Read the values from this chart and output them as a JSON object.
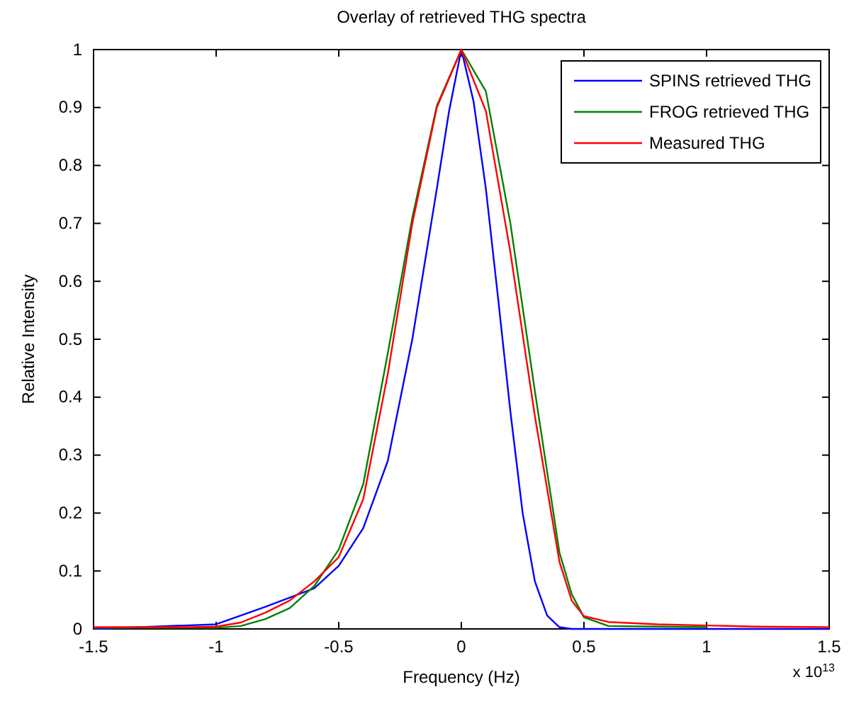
{
  "chart_data": {
    "type": "line",
    "title": "Overlay of retrieved THG spectra",
    "xlabel": "Frequency (Hz)",
    "ylabel": "Relative Intensity",
    "annotations": [
      "x 10$^{13}$"
    ],
    "xlim": [
      -1.5,
      1.5
    ],
    "xticks": [
      -1.5,
      -1,
      -0.5,
      0,
      0.5,
      1,
      1.5
    ],
    "ylim": [
      0,
      1
    ],
    "yticks": [
      0,
      0.1,
      0.2,
      0.3,
      0.4,
      0.5,
      0.6,
      0.7,
      0.8,
      0.9,
      1
    ],
    "grid": false,
    "legend": "top right",
    "line_style": "solid",
    "marker": "none",
    "series": [
      {
        "name": "SPINS retrieved THG",
        "color": "#0000ff",
        "x": [
          -1.5,
          -1,
          -0.8,
          -0.6,
          -0.5,
          -0.4,
          -0.3,
          -0.2,
          -0.1,
          -0.05,
          0,
          0.05,
          0.1,
          0.15,
          0.2,
          0.25,
          0.3,
          0.35,
          0.4,
          0.45,
          1.5
        ],
        "values": [
          0,
          0.008,
          0.038,
          0.07,
          0.109,
          0.174,
          0.29,
          0.5,
          0.76,
          0.894,
          1,
          0.91,
          0.76,
          0.57,
          0.375,
          0.2,
          0.082,
          0.023,
          0.003,
          0,
          0
        ]
      },
      {
        "name": "FROG retrieved THG",
        "color": "#008000",
        "x": [
          -1.5,
          -1,
          -0.9,
          -0.8,
          -0.7,
          -0.6,
          -0.5,
          -0.4,
          -0.3,
          -0.2,
          -0.1,
          0,
          0.1,
          0.2,
          0.3,
          0.4,
          0.45,
          0.5,
          0.6,
          0.8,
          1
        ],
        "values": [
          0.002,
          0.002,
          0.005,
          0.017,
          0.036,
          0.074,
          0.137,
          0.25,
          0.476,
          0.71,
          0.903,
          1,
          0.928,
          0.7,
          0.41,
          0.132,
          0.06,
          0.02,
          0.005,
          0.004,
          0.003
        ]
      },
      {
        "name": "Measured THG",
        "color": "#ff0000",
        "x": [
          -1.5,
          -1.1,
          -1,
          -0.9,
          -0.8,
          -0.7,
          -0.6,
          -0.5,
          -0.4,
          -0.3,
          -0.2,
          -0.1,
          0,
          0.1,
          0.2,
          0.3,
          0.4,
          0.45,
          0.5,
          0.6,
          0.8,
          1,
          1.2,
          1.5
        ],
        "values": [
          0.003,
          0.003,
          0.004,
          0.011,
          0.028,
          0.049,
          0.082,
          0.124,
          0.224,
          0.44,
          0.7,
          0.9,
          1,
          0.894,
          0.65,
          0.367,
          0.116,
          0.049,
          0.022,
          0.012,
          0.008,
          0.006,
          0.004,
          0.003
        ]
      }
    ]
  }
}
